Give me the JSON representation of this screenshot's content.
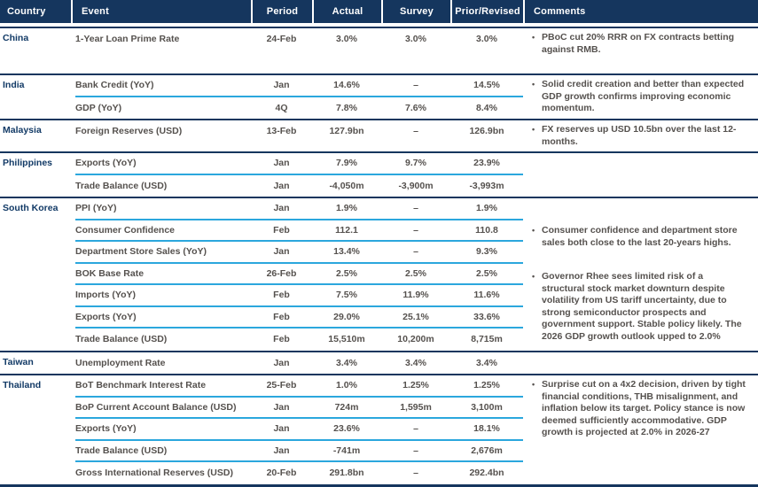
{
  "header": {
    "columns": [
      "Country",
      "Event",
      "Period",
      "Actual",
      "Survey",
      "Prior/Revised",
      "Comments"
    ]
  },
  "colors": {
    "header_bg": "#15365E",
    "group_divider": "#15365E",
    "row_divider": "#2BA7DD",
    "country_text": "#123A66",
    "body_text": "#55514E",
    "header_text": "#FFFFFF"
  },
  "bullet_glyph": "•",
  "groups": [
    {
      "country": "China",
      "rows": [
        {
          "event": "1-Year Loan Prime Rate",
          "period": "24-Feb",
          "actual": "3.0%",
          "survey": "3.0%",
          "prior": "3.0%"
        }
      ],
      "comments": [
        "PBoC cut 20% RRR on FX contracts betting against RMB."
      ]
    },
    {
      "country": "India",
      "rows": [
        {
          "event": "Bank Credit (YoY)",
          "period": "Jan",
          "actual": "14.6%",
          "survey": "–",
          "prior": "14.5%"
        },
        {
          "event": "GDP (YoY)",
          "period": "4Q",
          "actual": "7.8%",
          "survey": "7.6%",
          "prior": "8.4%"
        }
      ],
      "comments": [
        "Solid credit creation and better than expected GDP growth confirms improving economic momentum."
      ]
    },
    {
      "country": "Malaysia",
      "rows": [
        {
          "event": "Foreign Reserves (USD)",
          "period": "13-Feb",
          "actual": "127.9bn",
          "survey": "–",
          "prior": "126.9bn"
        }
      ],
      "comments": [
        "FX reserves up USD 10.5bn over the last 12-months."
      ]
    },
    {
      "country": "Philippines",
      "rows": [
        {
          "event": "Exports (YoY)",
          "period": "Jan",
          "actual": "7.9%",
          "survey": "9.7%",
          "prior": "23.9%"
        },
        {
          "event": "Trade Balance (USD)",
          "period": "Jan",
          "actual": "-4,050m",
          "survey": "-3,900m",
          "prior": "-3,993m"
        }
      ],
      "comments": []
    },
    {
      "country": "South Korea",
      "rows": [
        {
          "event": "PPI (YoY)",
          "period": "Jan",
          "actual": "1.9%",
          "survey": "–",
          "prior": "1.9%"
        },
        {
          "event": "Consumer Confidence",
          "period": "Feb",
          "actual": "112.1",
          "survey": "–",
          "prior": "110.8"
        },
        {
          "event": "Department Store Sales (YoY)",
          "period": "Jan",
          "actual": "13.4%",
          "survey": "–",
          "prior": "9.3%"
        },
        {
          "event": "BOK Base Rate",
          "period": "26-Feb",
          "actual": "2.5%",
          "survey": "2.5%",
          "prior": "2.5%"
        },
        {
          "event": "Imports (YoY)",
          "period": "Feb",
          "actual": "7.5%",
          "survey": "11.9%",
          "prior": "11.6%"
        },
        {
          "event": "Exports (YoY)",
          "period": "Feb",
          "actual": "29.0%",
          "survey": "25.1%",
          "prior": "33.6%"
        },
        {
          "event": "Trade Balance (USD)",
          "period": "Feb",
          "actual": "15,510m",
          "survey": "10,200m",
          "prior": "8,715m"
        }
      ],
      "comments": [
        "Consumer confidence and department store sales both close to the last 20-years highs.",
        "Governor Rhee sees limited risk of a structural stock market downturn despite volatility from US tariff uncertainty, due to strong semiconductor prospects and government support. Stable policy likely. The 2026 GDP growth outlook upped to 2.0%"
      ]
    },
    {
      "country": "Taiwan",
      "rows": [
        {
          "event": "Unemployment Rate",
          "period": "Jan",
          "actual": "3.4%",
          "survey": "3.4%",
          "prior": "3.4%"
        }
      ],
      "comments": []
    },
    {
      "country": "Thailand",
      "rows": [
        {
          "event": "BoT Benchmark Interest Rate",
          "period": "25-Feb",
          "actual": "1.0%",
          "survey": "1.25%",
          "prior": "1.25%"
        },
        {
          "event": "BoP Current Account Balance (USD)",
          "period": "Jan",
          "actual": "724m",
          "survey": "1,595m",
          "prior": "3,100m"
        },
        {
          "event": "Exports (YoY)",
          "period": "Jan",
          "actual": "23.6%",
          "survey": "–",
          "prior": "18.1%"
        },
        {
          "event": "Trade Balance (USD)",
          "period": "Jan",
          "actual": "-741m",
          "survey": "–",
          "prior": "2,676m"
        },
        {
          "event": "Gross International Reserves (USD)",
          "period": "20-Feb",
          "actual": "291.8bn",
          "survey": "–",
          "prior": "292.4bn"
        }
      ],
      "comments": [
        "Surprise cut on a 4x2 decision, driven by tight financial conditions, THB misalignment, and inflation below its target. Policy stance is now deemed sufficiently accommodative. GDP growth is projected at 2.0% in 2026-27"
      ]
    }
  ]
}
